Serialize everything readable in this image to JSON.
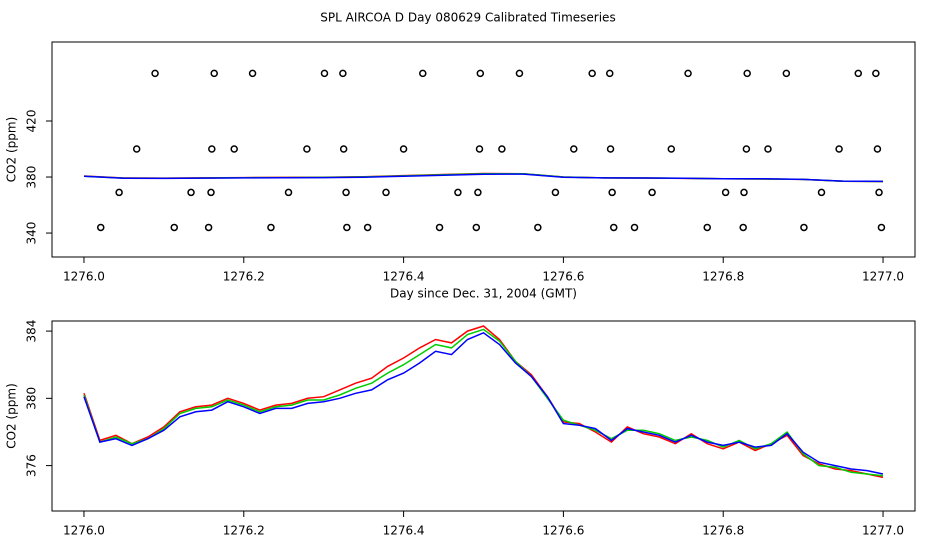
{
  "title": "SPL AIRCOA D  Day 080629  Calibrated Timeseries",
  "chart_data": [
    {
      "type": "line",
      "xlabel": "Day since Dec. 31, 2004 (GMT)",
      "ylabel": "CO2 (ppm)",
      "xlim": [
        1275.96,
        1277.04
      ],
      "ylim": [
        322.9,
        476.4
      ],
      "xticks": [
        {
          "value": 1276,
          "label": "1276.0"
        },
        1276.2,
        1276.4,
        1276.6,
        1276.8,
        {
          "value": 1277,
          "label": "1277.0"
        }
      ],
      "yticks": [
        340,
        380,
        420
      ],
      "x": [
        1276.0,
        1276.05,
        1276.1,
        1276.15,
        1276.2,
        1276.25,
        1276.3,
        1276.35,
        1276.4,
        1276.45,
        1276.5,
        1276.55,
        1276.6,
        1276.65,
        1276.7,
        1276.75,
        1276.8,
        1276.85,
        1276.9,
        1276.95,
        1277.0
      ],
      "series": [
        {
          "name": "red",
          "color": "#ff0000",
          "values": [
            380.7,
            379.3,
            379.2,
            379.4,
            379.6,
            379.7,
            379.8,
            380.2,
            381.0,
            381.8,
            382.5,
            382.4,
            380.0,
            379.4,
            379.3,
            379.0,
            378.8,
            378.6,
            378.3,
            377.0,
            376.8
          ]
        },
        {
          "name": "green",
          "color": "#00cc00",
          "values": [
            380.6,
            379.2,
            379.1,
            379.3,
            379.5,
            379.6,
            379.7,
            380.1,
            380.8,
            381.6,
            382.3,
            382.3,
            380.0,
            379.4,
            379.3,
            379.1,
            378.8,
            378.6,
            378.3,
            377.0,
            376.8
          ]
        },
        {
          "name": "blue",
          "color": "#0000ff",
          "values": [
            380.5,
            379.1,
            379.0,
            379.2,
            379.4,
            379.5,
            379.6,
            379.9,
            380.5,
            381.3,
            382.0,
            382.1,
            379.9,
            379.4,
            379.3,
            379.1,
            378.8,
            378.7,
            378.3,
            377.1,
            376.9
          ]
        }
      ],
      "outliers": {
        "x": [
          1276.089,
          1276.163,
          1276.211,
          1276.301,
          1276.324,
          1276.424,
          1276.496,
          1276.545,
          1276.636,
          1276.658,
          1276.756,
          1276.83,
          1276.879,
          1276.969,
          1276.991,
          1276.066,
          1276.16,
          1276.188,
          1276.279,
          1276.325,
          1276.4,
          1276.495,
          1276.523,
          1276.613,
          1276.659,
          1276.735,
          1276.829,
          1276.856,
          1276.945,
          1276.993,
          1276.044,
          1276.134,
          1276.159,
          1276.256,
          1276.328,
          1276.378,
          1276.468,
          1276.493,
          1276.59,
          1276.661,
          1276.711,
          1276.803,
          1276.826,
          1276.923,
          1276.995,
          1276.021,
          1276.113,
          1276.156,
          1276.234,
          1276.329,
          1276.355,
          1276.445,
          1276.491,
          1276.568,
          1276.663,
          1276.689,
          1276.78,
          1276.825,
          1276.901,
          1276.998
        ],
        "values": [
          454,
          454,
          454,
          454,
          454,
          454,
          454,
          454,
          454,
          454,
          454,
          454,
          454,
          454,
          454,
          400,
          400,
          400,
          400,
          400,
          400,
          400,
          400,
          400,
          400,
          400,
          400,
          400,
          400,
          400,
          369,
          369,
          369,
          369,
          369,
          369,
          369,
          369,
          369,
          369,
          369,
          369,
          369,
          369,
          369,
          344,
          344,
          344,
          344,
          344,
          344,
          344,
          344,
          344,
          344,
          344,
          344,
          344,
          344,
          344
        ]
      }
    },
    {
      "type": "line",
      "xlabel": "Day since Dec. 31, 2004 (GMT)",
      "ylabel": "CO2 (ppm)",
      "xlim": [
        1275.96,
        1277.04
      ],
      "ylim": [
        373.3,
        384.6
      ],
      "xticks": [
        {
          "value": 1276,
          "label": "1276.0"
        },
        1276.2,
        1276.4,
        1276.6,
        1276.8,
        {
          "value": 1277,
          "label": "1277.0"
        }
      ],
      "yticks": [
        376,
        380,
        384
      ],
      "x": [
        1276.0,
        1276.02,
        1276.04,
        1276.06,
        1276.08,
        1276.1,
        1276.12,
        1276.14,
        1276.16,
        1276.18,
        1276.2,
        1276.22,
        1276.24,
        1276.26,
        1276.28,
        1276.3,
        1276.32,
        1276.34,
        1276.36,
        1276.38,
        1276.4,
        1276.42,
        1276.44,
        1276.46,
        1276.48,
        1276.5,
        1276.52,
        1276.54,
        1276.56,
        1276.58,
        1276.6,
        1276.62,
        1276.64,
        1276.66,
        1276.68,
        1276.7,
        1276.72,
        1276.74,
        1276.76,
        1276.78,
        1276.8,
        1276.82,
        1276.84,
        1276.86,
        1276.88,
        1276.9,
        1276.92,
        1276.94,
        1276.96,
        1276.98,
        1277.0
      ],
      "series": [
        {
          "name": "red",
          "color": "#ff0000",
          "values": [
            380.3,
            377.5,
            377.8,
            377.3,
            377.7,
            378.3,
            379.2,
            379.5,
            379.6,
            380.0,
            379.7,
            379.3,
            379.6,
            379.7,
            380.0,
            380.1,
            380.5,
            380.9,
            381.2,
            381.9,
            382.4,
            383.0,
            383.5,
            383.3,
            384.0,
            384.3,
            383.5,
            382.2,
            381.4,
            380.1,
            378.6,
            378.5,
            378.0,
            377.4,
            378.3,
            377.9,
            377.7,
            377.3,
            377.9,
            377.3,
            377.0,
            377.4,
            376.9,
            377.3,
            377.8,
            376.6,
            376.1,
            375.8,
            375.7,
            375.5,
            375.3
          ]
        },
        {
          "name": "green",
          "color": "#00cc00",
          "values": [
            380.2,
            377.4,
            377.7,
            377.3,
            377.6,
            378.2,
            379.1,
            379.4,
            379.5,
            379.9,
            379.6,
            379.2,
            379.5,
            379.6,
            379.9,
            379.9,
            380.2,
            380.6,
            380.9,
            381.5,
            382.0,
            382.6,
            383.2,
            383.0,
            383.8,
            384.1,
            383.4,
            382.2,
            381.3,
            380.0,
            378.7,
            378.4,
            378.1,
            377.6,
            378.1,
            378.1,
            377.9,
            377.5,
            377.7,
            377.5,
            377.1,
            377.5,
            377.0,
            377.3,
            378.0,
            376.7,
            376.0,
            375.9,
            375.6,
            375.5,
            375.4
          ]
        },
        {
          "name": "blue",
          "color": "#0000ff",
          "values": [
            380.1,
            377.4,
            377.6,
            377.2,
            377.6,
            378.1,
            378.9,
            379.2,
            379.3,
            379.8,
            379.5,
            379.1,
            379.4,
            379.4,
            379.7,
            379.8,
            380.0,
            380.3,
            380.5,
            381.1,
            381.5,
            382.1,
            382.8,
            382.6,
            383.5,
            383.9,
            383.2,
            382.1,
            381.3,
            380.1,
            378.5,
            378.4,
            378.2,
            377.5,
            378.2,
            378.0,
            377.8,
            377.4,
            377.8,
            377.4,
            377.2,
            377.4,
            377.1,
            377.2,
            377.9,
            376.8,
            376.2,
            376.0,
            375.8,
            375.7,
            375.5
          ]
        }
      ]
    }
  ]
}
